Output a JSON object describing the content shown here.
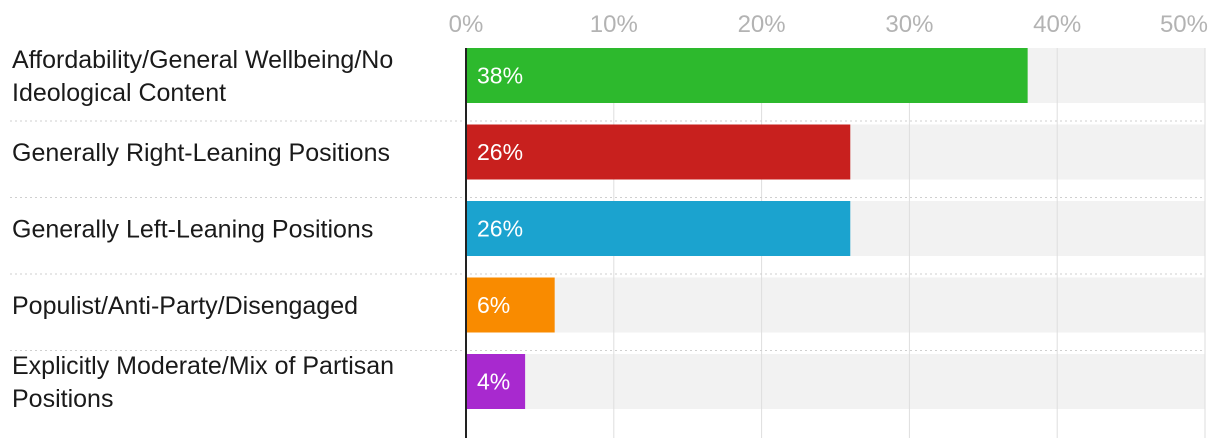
{
  "chart_data": {
    "type": "bar",
    "orientation": "horizontal",
    "categories": [
      "Affordability/General Wellbeing/No Ideological Content",
      "Generally Right-Leaning Positions",
      "Generally Left-Leaning Positions",
      "Populist/Anti-Party/Disengaged",
      "Explicitly Moderate/Mix of Partisan Positions"
    ],
    "category_lines": [
      [
        "Affordability/General Wellbeing/No",
        "Ideological Content"
      ],
      [
        "Generally Right-Leaning Positions"
      ],
      [
        "Generally Left-Leaning Positions"
      ],
      [
        "Populist/Anti-Party/Disengaged"
      ],
      [
        "Explicitly Moderate/Mix of Partisan",
        "Positions"
      ]
    ],
    "values": [
      38,
      26,
      26,
      6,
      4
    ],
    "value_labels": [
      "38%",
      "26%",
      "26%",
      "6%",
      "4%"
    ],
    "colors": [
      "#2db92d",
      "#c8201e",
      "#1ba3cf",
      "#f98b00",
      "#a829cf"
    ],
    "xlim": [
      0,
      50
    ],
    "xticks": [
      0,
      10,
      20,
      30,
      40,
      50
    ],
    "xtick_labels": [
      "0%",
      "10%",
      "20%",
      "30%",
      "40%",
      "50%"
    ],
    "axis_position": "top",
    "grid": true,
    "background_track_color": "#f2f2f2",
    "gridline_color": "#dedede",
    "title": "",
    "xlabel": "",
    "ylabel": ""
  }
}
